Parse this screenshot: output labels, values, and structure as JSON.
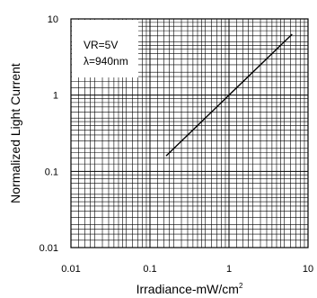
{
  "chart_data": {
    "type": "line",
    "title": "",
    "xlabel": "Irradiance-mW/cm",
    "xlabel_superscript": "2",
    "ylabel": "Normalized Light Current",
    "x_scale": "log",
    "y_scale": "log",
    "xlim": [
      0.01,
      10
    ],
    "ylim": [
      0.01,
      10
    ],
    "x_ticks": [
      "0.01",
      "0.1",
      "1",
      "10"
    ],
    "y_ticks": [
      "0.01",
      "0.1",
      "1",
      "10"
    ],
    "grid": true,
    "legend": "none",
    "annotations": [
      "VR=5V",
      "λ=940nm"
    ],
    "series": [
      {
        "x": [
          0.16,
          6.3
        ],
        "y": [
          0.16,
          6.3
        ]
      }
    ]
  }
}
